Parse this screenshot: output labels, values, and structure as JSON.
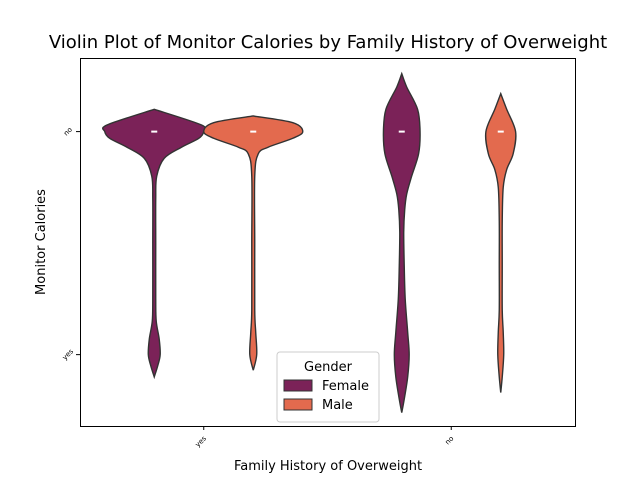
{
  "chart_data": {
    "type": "violin",
    "title": "Violin Plot of Monitor Calories by Family History of Overweight",
    "xlabel": "Family History of Overweight",
    "ylabel": "Monitor Calories",
    "categories": [
      "yes",
      "no"
    ],
    "y_categories": [
      "no",
      "yes"
    ],
    "legend": {
      "title": "Gender",
      "placement": "lower-center",
      "entries": [
        "Female",
        "Male"
      ]
    },
    "series": [
      {
        "name": "Female",
        "color": "#7b2258",
        "violins": [
          {
            "category": "yes",
            "median": "no",
            "y_extent": [
              -0.1,
              1.1
            ],
            "profile": [
              [
                -0.1,
                0.0
              ],
              [
                -0.03,
                0.95
              ],
              [
                0.0,
                1.0
              ],
              [
                0.03,
                0.9
              ],
              [
                0.07,
                0.55
              ],
              [
                0.12,
                0.2
              ],
              [
                0.2,
                0.05
              ],
              [
                0.3,
                0.03
              ],
              [
                0.5,
                0.03
              ],
              [
                0.75,
                0.03
              ],
              [
                0.85,
                0.04
              ],
              [
                0.93,
                0.1
              ],
              [
                1.0,
                0.12
              ],
              [
                1.05,
                0.07
              ],
              [
                1.1,
                0.0
              ]
            ]
          },
          {
            "category": "no",
            "median": "no",
            "y_extent": [
              -0.26,
              1.26
            ],
            "profile": [
              [
                -0.26,
                0.0
              ],
              [
                -0.2,
                0.1
              ],
              [
                -0.1,
                0.32
              ],
              [
                0.0,
                0.37
              ],
              [
                0.1,
                0.34
              ],
              [
                0.2,
                0.2
              ],
              [
                0.28,
                0.1
              ],
              [
                0.35,
                0.06
              ],
              [
                0.45,
                0.04
              ],
              [
                0.6,
                0.05
              ],
              [
                0.75,
                0.07
              ],
              [
                0.9,
                0.12
              ],
              [
                1.0,
                0.15
              ],
              [
                1.1,
                0.12
              ],
              [
                1.2,
                0.05
              ],
              [
                1.26,
                0.0
              ]
            ]
          }
        ]
      },
      {
        "name": "Male",
        "color": "#e36a4e",
        "violins": [
          {
            "category": "yes",
            "median": "no",
            "y_extent": [
              -0.07,
              1.07
            ],
            "profile": [
              [
                -0.07,
                0.0
              ],
              [
                -0.04,
                0.8
              ],
              [
                0.0,
                1.0
              ],
              [
                0.03,
                0.8
              ],
              [
                0.07,
                0.3
              ],
              [
                0.1,
                0.1
              ],
              [
                0.2,
                0.03
              ],
              [
                0.5,
                0.03
              ],
              [
                0.8,
                0.03
              ],
              [
                0.9,
                0.05
              ],
              [
                1.0,
                0.07
              ],
              [
                1.07,
                0.0
              ]
            ]
          },
          {
            "category": "no",
            "median": "no",
            "y_extent": [
              -0.17,
              1.17
            ],
            "profile": [
              [
                -0.17,
                0.0
              ],
              [
                -0.1,
                0.12
              ],
              [
                0.0,
                0.3
              ],
              [
                0.1,
                0.25
              ],
              [
                0.17,
                0.12
              ],
              [
                0.25,
                0.05
              ],
              [
                0.4,
                0.03
              ],
              [
                0.6,
                0.03
              ],
              [
                0.8,
                0.03
              ],
              [
                0.9,
                0.05
              ],
              [
                1.0,
                0.06
              ],
              [
                1.1,
                0.03
              ],
              [
                1.17,
                0.0
              ]
            ]
          }
        ]
      }
    ],
    "ylim": [
      1.32,
      -0.33
    ],
    "grid": false
  }
}
